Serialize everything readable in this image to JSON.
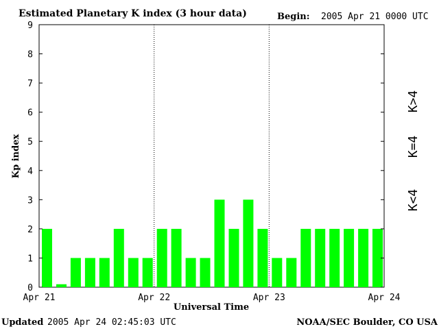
{
  "header": {
    "title": "Estimated Planetary K index (3 hour data)",
    "begin_label": "Begin:",
    "begin_value": "2005 Apr 21 0000 UTC"
  },
  "footer": {
    "updated_label": "Updated",
    "updated_value": "2005 Apr 24 02:45:03 UTC",
    "source": "NOAA/SEC Boulder, CO USA"
  },
  "legend": {
    "high": "K>4",
    "equal": "K=4",
    "low": "K<4",
    "colors": {
      "high": "#ff2a00",
      "equal": "#ffd700",
      "low": "#22ee22"
    }
  },
  "chart_data": {
    "type": "bar",
    "title": "Estimated Planetary K index (3 hour data)",
    "xlabel": "Universal Time",
    "ylabel": "Kp index",
    "ylim": [
      0,
      9
    ],
    "yticks": [
      "0",
      "1",
      "2",
      "3",
      "4",
      "5",
      "6",
      "7",
      "8",
      "9"
    ],
    "xticks": [
      "Apr 21",
      "Apr 22",
      "Apr 23",
      "Apr 24"
    ],
    "values": [
      2,
      0.1,
      1,
      1,
      1,
      2,
      1,
      1,
      2,
      2,
      1,
      1,
      3,
      2,
      3,
      2,
      1,
      1,
      2,
      2,
      2,
      2,
      2,
      2
    ],
    "bar_color": "#00ff00",
    "grid": false,
    "day_dividers": true
  }
}
